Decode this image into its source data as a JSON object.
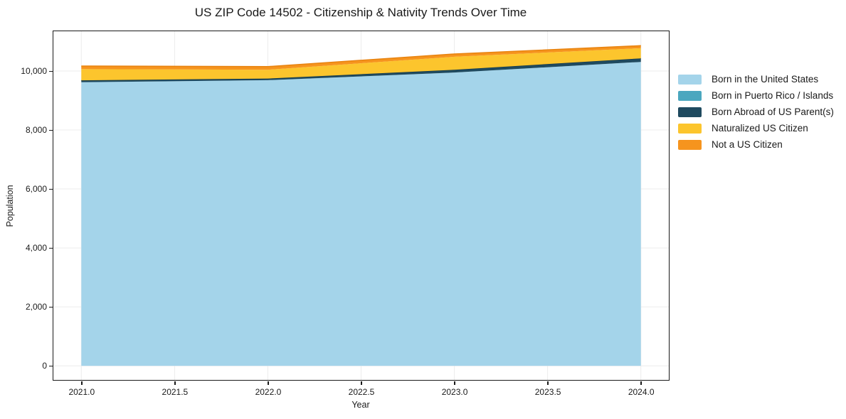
{
  "chart_data": {
    "type": "area",
    "stacked": true,
    "title": "US ZIP Code 14502 - Citizenship & Nativity Trends Over Time",
    "xlabel": "Year",
    "ylabel": "Population",
    "x": [
      2021,
      2022,
      2023,
      2024
    ],
    "series": [
      {
        "name": "Born in the United States",
        "color": "#a4d4ea",
        "edge": null,
        "values": [
          9620,
          9690,
          9950,
          10310
        ]
      },
      {
        "name": "Born in Puerto Rico / Islands",
        "color": "#4ba7bf",
        "edge": null,
        "values": [
          0,
          0,
          0,
          0
        ]
      },
      {
        "name": "Born Abroad of US Parent(s)",
        "color": "#1f4a5f",
        "edge": "#173c4e",
        "values": [
          65,
          55,
          95,
          120
        ]
      },
      {
        "name": "Naturalized US Citizen",
        "color": "#fcc52d",
        "edge": null,
        "values": [
          380,
          300,
          440,
          345
        ]
      },
      {
        "name": "Not a US Citizen",
        "color": "#f6941e",
        "edge": "#e8830f",
        "values": [
          105,
          105,
          95,
          85
        ]
      }
    ],
    "xlim": [
      2020.85,
      2024.15
    ],
    "ylim": [
      -480,
      11350
    ],
    "x_ticks": [
      2021.0,
      2021.5,
      2022.0,
      2022.5,
      2023.0,
      2023.5,
      2024.0
    ],
    "x_tick_labels": [
      "2021.0",
      "2021.5",
      "2022.0",
      "2022.5",
      "2023.0",
      "2023.5",
      "2024.0"
    ],
    "y_ticks": [
      0,
      2000,
      4000,
      6000,
      8000,
      10000
    ],
    "y_tick_labels": [
      "0",
      "2,000",
      "4,000",
      "6,000",
      "8,000",
      "10,000"
    ],
    "grid": true,
    "legend_position": "right-outside"
  },
  "colors": {
    "background": "#ffffff",
    "spine": "#1a1a1a",
    "grid": "#ececec",
    "text": "#1a1a1a"
  }
}
